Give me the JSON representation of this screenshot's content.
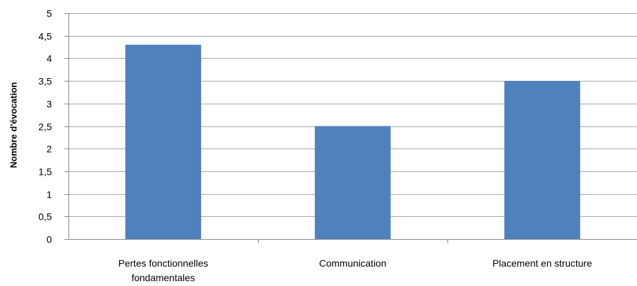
{
  "chart_data": {
    "type": "bar",
    "categories": [
      [
        "Pertes fonctionnelles",
        "fondamentales"
      ],
      [
        "Communication"
      ],
      [
        "Placement en structure"
      ]
    ],
    "values": [
      4.3,
      2.5,
      3.5
    ],
    "title": "",
    "xlabel": "",
    "ylabel": "Nombre d'évocation",
    "ylim": [
      0,
      5
    ],
    "yticks": [
      "0",
      "0,5",
      "1",
      "1,5",
      "2",
      "2,5",
      "3",
      "3,5",
      "4",
      "4,5",
      "5"
    ],
    "grid": true,
    "legend": "none",
    "bar_color": "#4f81bd",
    "grid_color": "#a6a6a6",
    "axis_color": "#868686"
  }
}
